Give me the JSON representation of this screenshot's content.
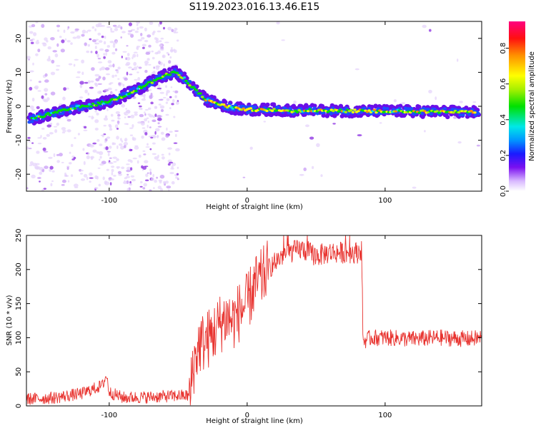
{
  "figure": {
    "title": "S119.2023.016.13.46.E15"
  },
  "chart_data": [
    {
      "type": "heatmap",
      "xlabel": "Height of straight line (km)",
      "ylabel": "Frequency (Hz)",
      "xlim": [
        -160,
        170
      ],
      "ylim": [
        -25,
        25
      ],
      "x_ticks": [
        -100,
        0,
        100
      ],
      "y_ticks": [
        -20,
        -10,
        0,
        10,
        20
      ],
      "grid": false,
      "ridge": {
        "x": [
          -158,
          -150,
          -140,
          -130,
          -120,
          -110,
          -100,
          -90,
          -80,
          -70,
          -60,
          -52,
          -45,
          -38,
          -30,
          -20,
          -10,
          0,
          10,
          20,
          30,
          35,
          40,
          60,
          80,
          100,
          120,
          140,
          165
        ],
        "y": [
          -4,
          -3,
          -2,
          -1,
          0,
          0.5,
          1.5,
          3,
          5,
          7,
          9,
          10,
          8,
          5,
          2,
          0.5,
          -0.5,
          -1,
          -1,
          -1,
          -1.2,
          -1.4,
          -1.2,
          -1.3,
          -1.4,
          -1.4,
          -1.5,
          -1.6,
          -1.8
        ]
      },
      "colorbar": {
        "label": "Normalized spectral amplitude",
        "ticks": [
          0.0,
          0.2,
          0.4,
          0.6,
          0.8
        ],
        "range": [
          0,
          0.95
        ]
      }
    },
    {
      "type": "line",
      "xlabel": "Height of straight line (km)",
      "ylabel": "SNR (10 * v/v)",
      "xlim": [
        -160,
        170
      ],
      "ylim": [
        0,
        250
      ],
      "x_ticks": [
        -100,
        0,
        100
      ],
      "y_ticks": [
        0,
        50,
        100,
        150,
        200,
        250
      ],
      "grid": false,
      "color": "#e8332f",
      "series": [
        {
          "x": [
            -160,
            -140,
            -120,
            -105,
            -102,
            -100,
            -90,
            -70,
            -50,
            -41,
            -40,
            -35,
            -30,
            -25,
            -20,
            -15,
            -10,
            -5,
            0,
            5,
            10,
            15,
            20,
            25,
            30,
            40,
            50,
            60,
            70,
            80,
            83,
            84,
            90,
            100,
            120,
            140,
            160,
            170
          ],
          "y": [
            10,
            12,
            18,
            30,
            45,
            20,
            12,
            13,
            15,
            15,
            50,
            90,
            95,
            105,
            120,
            130,
            125,
            140,
            150,
            175,
            185,
            200,
            210,
            220,
            225,
            230,
            220,
            225,
            225,
            225,
            230,
            95,
            100,
            100,
            98,
            100,
            98,
            100
          ]
        }
      ]
    }
  ]
}
